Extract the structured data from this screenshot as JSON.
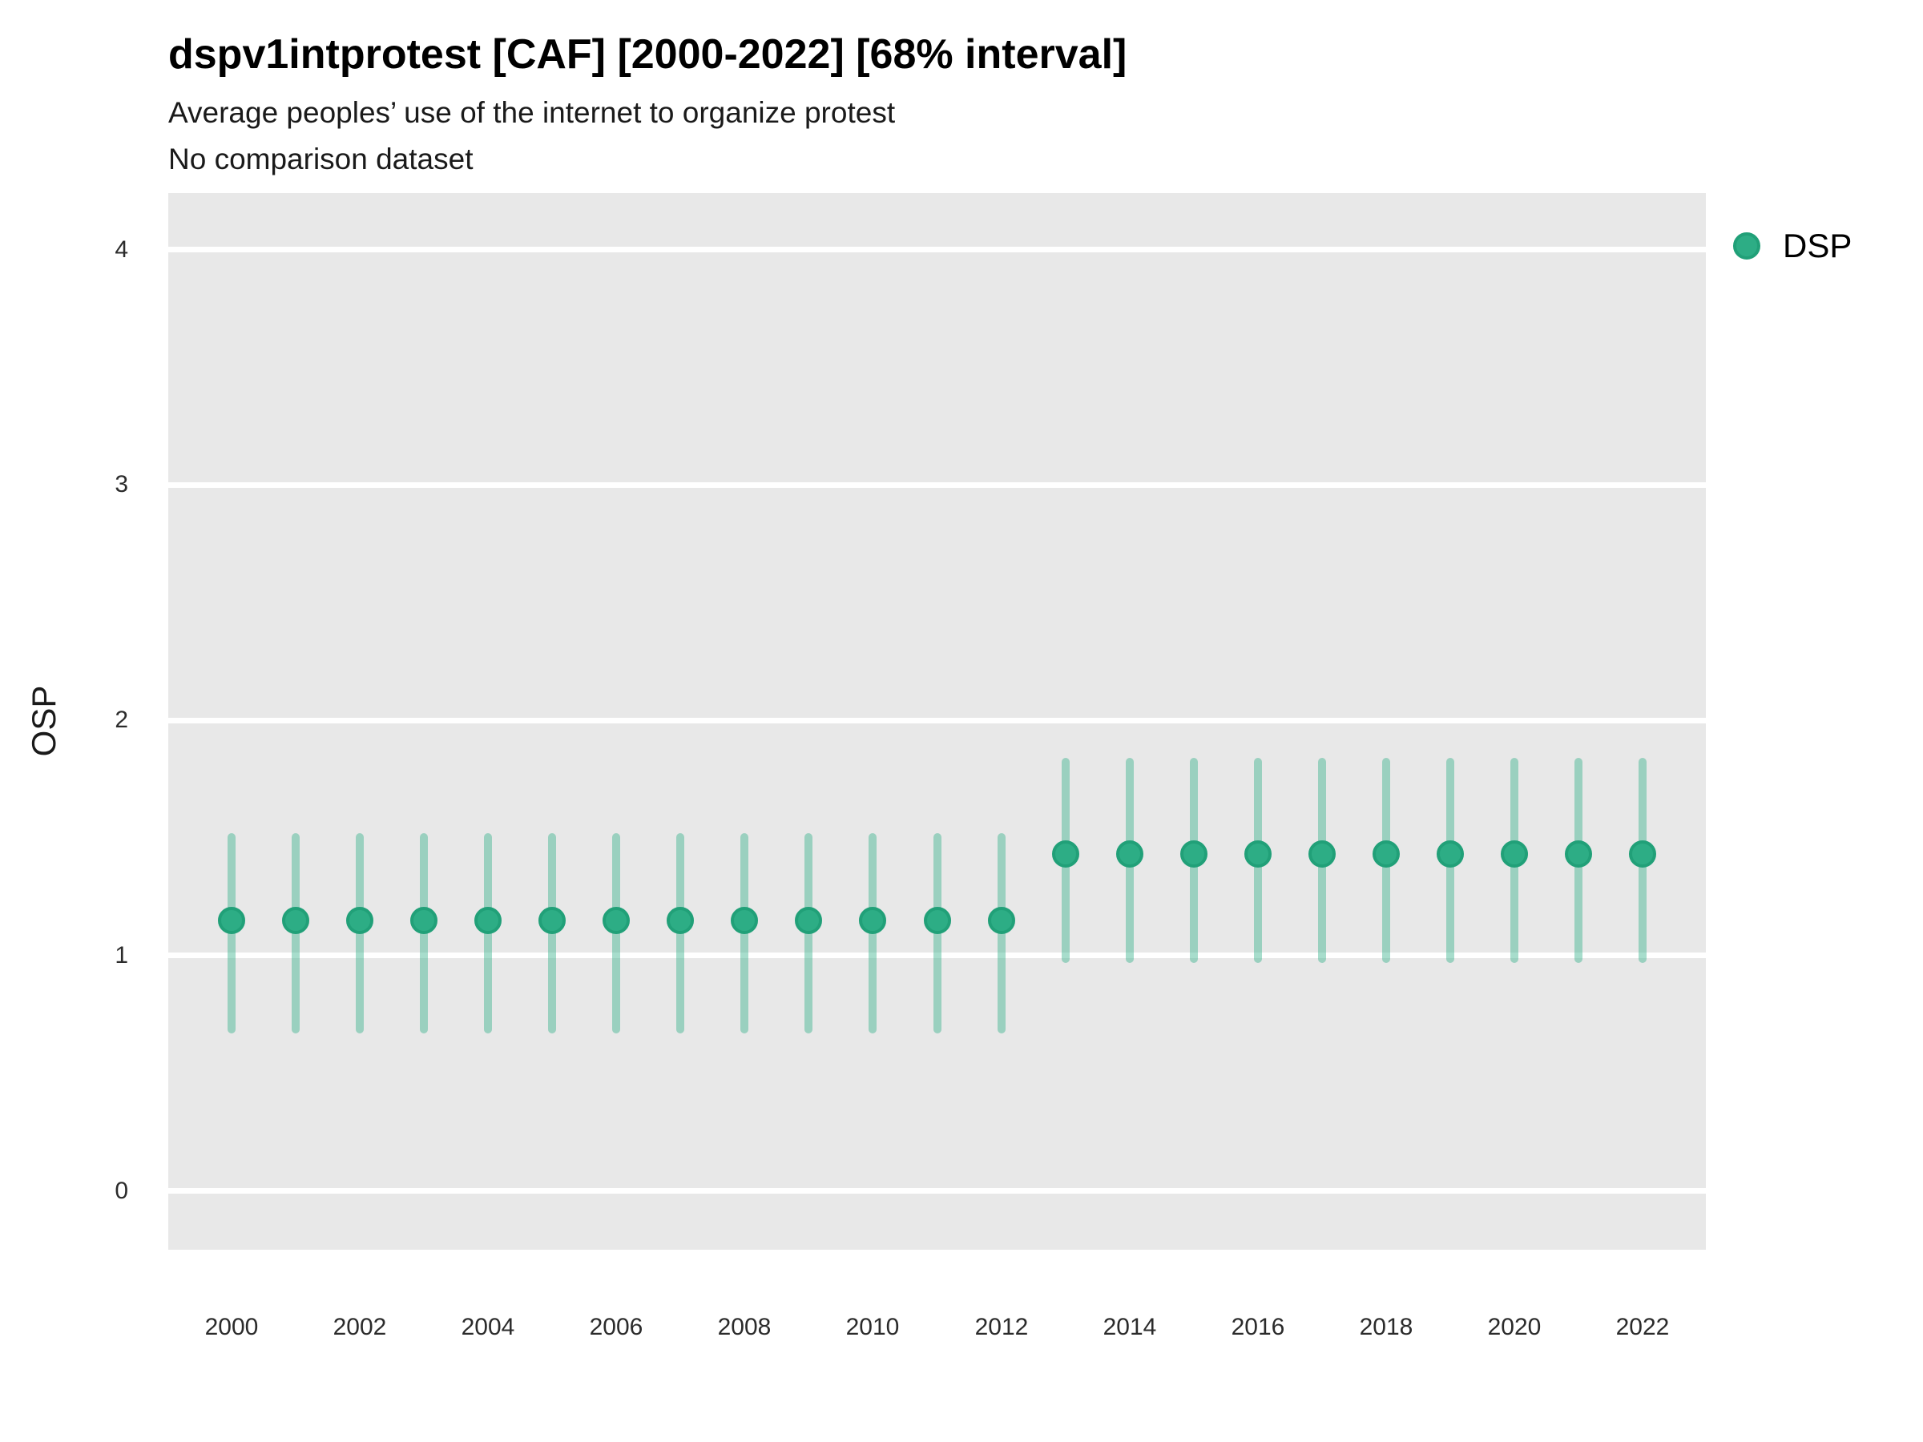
{
  "header": {
    "title": "dspv1intprotest [CAF] [2000-2022] [68% interval]",
    "subtitle": "Average peoples’ use of the internet to organize protest",
    "note": "No comparison dataset"
  },
  "legend": {
    "position": "right",
    "items": [
      {
        "label": "DSP",
        "color": "#2DAD85"
      }
    ]
  },
  "chart_data": {
    "type": "pointrange",
    "title": "dspv1intprotest [CAF] [2000-2022] [68% interval]",
    "subtitle": "Average peoples’ use of the internet to organize protest",
    "note": "No comparison dataset",
    "xlabel": "",
    "ylabel": "OSP",
    "x": [
      2000,
      2001,
      2002,
      2003,
      2004,
      2005,
      2006,
      2007,
      2008,
      2009,
      2010,
      2011,
      2012,
      2013,
      2014,
      2015,
      2016,
      2017,
      2018,
      2019,
      2020,
      2021,
      2022
    ],
    "series": [
      {
        "name": "DSP",
        "values": [
          1.15,
          1.15,
          1.15,
          1.15,
          1.15,
          1.15,
          1.15,
          1.15,
          1.15,
          1.15,
          1.15,
          1.15,
          1.15,
          1.43,
          1.43,
          1.43,
          1.43,
          1.43,
          1.43,
          1.43,
          1.43,
          1.43,
          1.43
        ],
        "lower": [
          0.67,
          0.67,
          0.67,
          0.67,
          0.67,
          0.67,
          0.67,
          0.67,
          0.67,
          0.67,
          0.67,
          0.67,
          0.67,
          0.97,
          0.97,
          0.97,
          0.97,
          0.97,
          0.97,
          0.97,
          0.97,
          0.97,
          0.97
        ],
        "upper": [
          1.52,
          1.52,
          1.52,
          1.52,
          1.52,
          1.52,
          1.52,
          1.52,
          1.52,
          1.52,
          1.52,
          1.52,
          1.52,
          1.84,
          1.84,
          1.84,
          1.84,
          1.84,
          1.84,
          1.84,
          1.84,
          1.84,
          1.84
        ]
      }
    ],
    "interval_label": "68% interval",
    "ylim": [
      -0.25,
      4.24
    ],
    "yticks": [
      0,
      1,
      2,
      3,
      4
    ],
    "xtick_step": 2,
    "grid": "horizontal-major-only",
    "legend_position": "right",
    "colors": {
      "panel_bg": "#E8E8E8",
      "gridline": "#FFFFFF",
      "point_fill": "#2DAD85",
      "point_stroke": "#21A078",
      "range_line": "rgba(45,173,133,0.42)",
      "title_text": "#000000",
      "axis_text": "#2b2b2b"
    }
  }
}
